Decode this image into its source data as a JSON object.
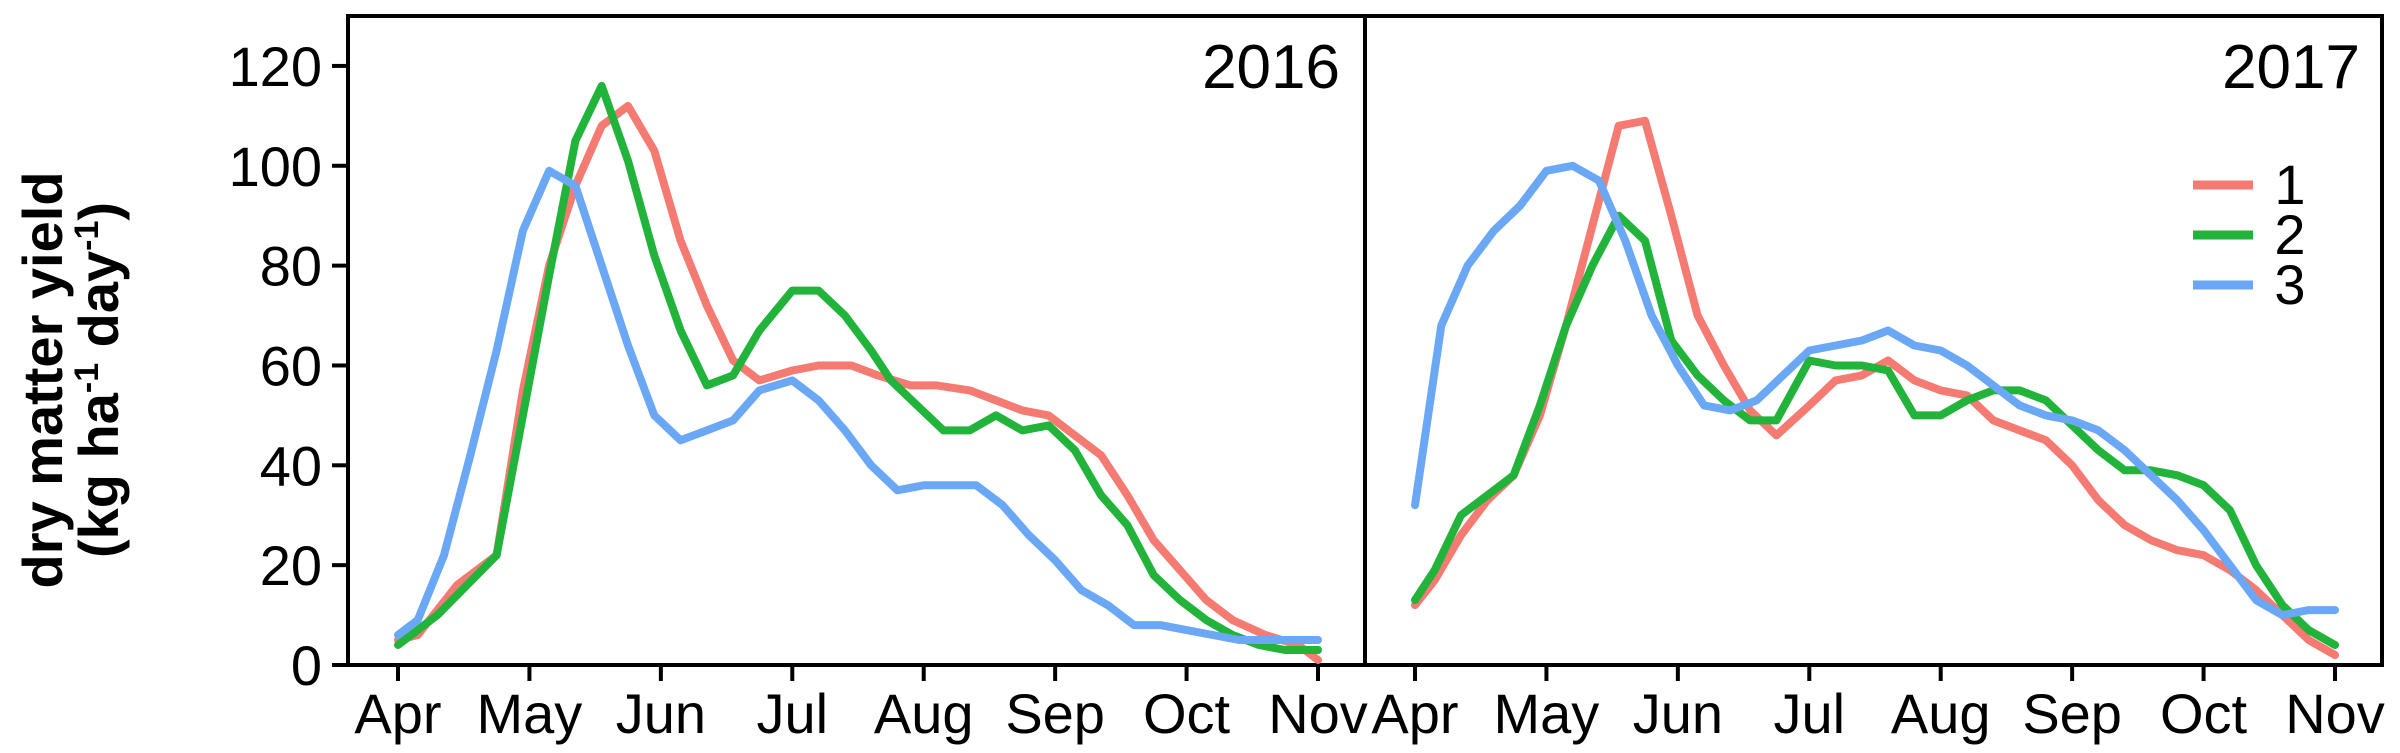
{
  "chart_data": {
    "type": "line",
    "ylabel_line1": "dry matter yield",
    "ylabel_line2_main": "(kg ha",
    "ylabel_line2_sup1": "-1",
    "ylabel_line2_mid": " day",
    "ylabel_line2_sup2": "-1",
    "ylabel_line2_end": ")",
    "ylim": [
      0,
      130
    ],
    "yticks": [
      0,
      20,
      40,
      60,
      80,
      100,
      120
    ],
    "xlim": [
      0,
      7.1
    ],
    "xtick_labels": [
      "Apr",
      "May",
      "Jun",
      "Jul",
      "Aug",
      "Sep",
      "Oct",
      "Nov"
    ],
    "legend_placement": "top-right of right panel",
    "colors": {
      "1": "#f47a72",
      "2": "#22b33b",
      "3": "#6aa8f6"
    },
    "panels": [
      {
        "title": "2016",
        "series": [
          {
            "name": "1",
            "x": [
              0,
              0.15,
              0.45,
              0.75,
              0.95,
              1.15,
              1.35,
              1.55,
              1.75,
              1.95,
              2.15,
              2.35,
              2.55,
              2.75,
              3.0,
              3.2,
              3.45,
              3.65,
              3.9,
              4.1,
              4.35,
              4.55,
              4.75,
              4.95,
              5.15,
              5.35,
              5.55,
              5.75,
              5.95,
              6.15,
              6.35,
              6.6,
              6.85,
              7.0
            ],
            "y": [
              5,
              6,
              16,
              22,
              55,
              80,
              96,
              108,
              112,
              103,
              85,
              72,
              61,
              57,
              59,
              60,
              60,
              58,
              56,
              56,
              55,
              53,
              51,
              50,
              46,
              42,
              34,
              25,
              19,
              13,
              9,
              6,
              4,
              1
            ]
          },
          {
            "name": "2",
            "x": [
              0,
              0.3,
              0.75,
              0.95,
              1.15,
              1.35,
              1.55,
              1.75,
              1.95,
              2.15,
              2.35,
              2.55,
              2.75,
              3.0,
              3.2,
              3.4,
              3.6,
              3.75,
              3.95,
              4.15,
              4.35,
              4.55,
              4.75,
              4.95,
              5.15,
              5.35,
              5.55,
              5.75,
              5.95,
              6.15,
              6.35,
              6.55,
              6.75,
              7.0
            ],
            "y": [
              4,
              10,
              22,
              50,
              78,
              105,
              116,
              101,
              82,
              67,
              56,
              58,
              67,
              75,
              75,
              70,
              63,
              57,
              52,
              47,
              47,
              50,
              47,
              48,
              43,
              34,
              28,
              18,
              13,
              9,
              6,
              4,
              3,
              3
            ]
          },
          {
            "name": "3",
            "x": [
              0,
              0.15,
              0.35,
              0.55,
              0.75,
              0.95,
              1.15,
              1.35,
              1.55,
              1.75,
              1.95,
              2.15,
              2.35,
              2.55,
              2.75,
              3.0,
              3.2,
              3.4,
              3.6,
              3.8,
              4.0,
              4.2,
              4.4,
              4.6,
              4.8,
              5.0,
              5.2,
              5.4,
              5.6,
              5.8,
              6.0,
              6.2,
              6.4,
              6.6,
              6.8,
              7.0
            ],
            "y": [
              6,
              9,
              22,
              42,
              63,
              87,
              99,
              96,
              80,
              64,
              50,
              45,
              47,
              49,
              55,
              57,
              53,
              47,
              40,
              35,
              36,
              36,
              36,
              32,
              26,
              21,
              15,
              12,
              8,
              8,
              7,
              6,
              5,
              5,
              5,
              5
            ]
          }
        ]
      },
      {
        "title": "2017",
        "series": [
          {
            "name": "1",
            "x": [
              0,
              0.15,
              0.35,
              0.55,
              0.75,
              0.95,
              1.15,
              1.35,
              1.55,
              1.75,
              1.95,
              2.15,
              2.35,
              2.55,
              2.75,
              3.0,
              3.2,
              3.4,
              3.6,
              3.8,
              4.0,
              4.2,
              4.4,
              4.6,
              4.8,
              5.0,
              5.2,
              5.4,
              5.6,
              5.8,
              6.0,
              6.2,
              6.4,
              6.6,
              6.8,
              7.0
            ],
            "y": [
              12,
              17,
              26,
              33,
              38,
              50,
              68,
              88,
              108,
              109,
              90,
              70,
              60,
              51,
              46,
              52,
              57,
              58,
              61,
              57,
              55,
              54,
              49,
              47,
              45,
              40,
              33,
              28,
              25,
              23,
              22,
              19,
              15,
              10,
              5,
              2
            ]
          },
          {
            "name": "2",
            "x": [
              0,
              0.15,
              0.35,
              0.55,
              0.75,
              0.95,
              1.15,
              1.35,
              1.55,
              1.75,
              1.95,
              2.15,
              2.35,
              2.55,
              2.75,
              3.0,
              3.2,
              3.4,
              3.6,
              3.8,
              4.0,
              4.2,
              4.4,
              4.6,
              4.8,
              5.0,
              5.2,
              5.4,
              5.6,
              5.8,
              6.0,
              6.2,
              6.4,
              6.6,
              6.8,
              7.0
            ],
            "y": [
              13,
              19,
              30,
              34,
              38,
              52,
              68,
              80,
              90,
              85,
              65,
              58,
              53,
              49,
              49,
              61,
              60,
              60,
              59,
              50,
              50,
              53,
              55,
              55,
              53,
              48,
              43,
              39,
              39,
              38,
              36,
              31,
              20,
              12,
              7,
              4
            ]
          },
          {
            "name": "3",
            "x": [
              0,
              0.2,
              0.4,
              0.6,
              0.8,
              1.0,
              1.2,
              1.4,
              1.6,
              1.8,
              2.0,
              2.2,
              2.4,
              2.6,
              2.8,
              3.0,
              3.2,
              3.4,
              3.6,
              3.8,
              4.0,
              4.2,
              4.4,
              4.6,
              4.8,
              5.0,
              5.2,
              5.4,
              5.6,
              5.8,
              6.0,
              6.2,
              6.4,
              6.6,
              6.8,
              7.0
            ],
            "y": [
              32,
              68,
              80,
              87,
              92,
              99,
              100,
              97,
              85,
              70,
              60,
              52,
              51,
              53,
              58,
              63,
              64,
              65,
              67,
              64,
              63,
              60,
              56,
              52,
              50,
              49,
              47,
              43,
              38,
              33,
              27,
              20,
              13,
              10,
              11,
              11
            ]
          }
        ]
      }
    ]
  }
}
